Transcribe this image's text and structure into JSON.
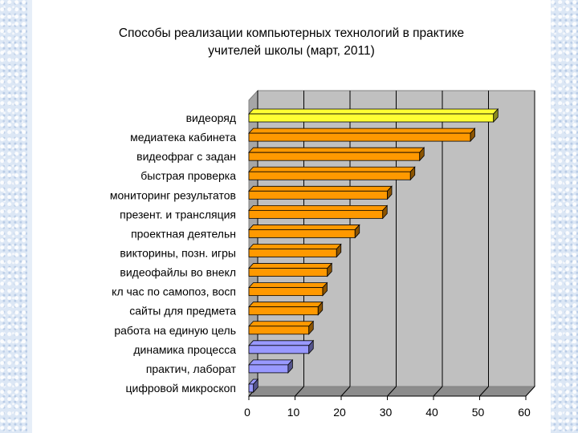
{
  "chart_data": {
    "type": "bar",
    "orientation": "horizontal",
    "title": "Способы реализации компьютерных технологий в практике",
    "subtitle": "учителей школы (март, 2011)",
    "categories": [
      "видеоряд",
      "медиатека кабинета",
      "видеофраг с  задан",
      "быстрая проверка",
      "мониторинг результатов",
      "презент. и трансляция",
      "проектная деятельн",
      "викторины, позн. игры",
      "видеофайлы во внекл",
      "кл час по самопоз, восп",
      "сайты для предмета",
      "работа на единую цель",
      "динамика процесса",
      "практич, лаборат",
      "цифровой микроскоп"
    ],
    "values": [
      53,
      48,
      37,
      35,
      30,
      29,
      23,
      19,
      17,
      16,
      15,
      13,
      13,
      8.5,
      1
    ],
    "bar_colors": [
      "#ffff33",
      "#ff9900",
      "#ff9900",
      "#ff9900",
      "#ff9900",
      "#ff9900",
      "#ff9900",
      "#ff9900",
      "#ff9900",
      "#ff9900",
      "#ff9900",
      "#ff9900",
      "#9999ff",
      "#9999ff",
      "#9999ff"
    ],
    "xlim": [
      0,
      60
    ],
    "x_ticks": [
      0,
      10,
      20,
      30,
      40,
      50,
      60
    ],
    "xlabel": "",
    "ylabel": "",
    "grid": "vertical",
    "plot_background": "#c0c0c0",
    "legend": "none"
  }
}
